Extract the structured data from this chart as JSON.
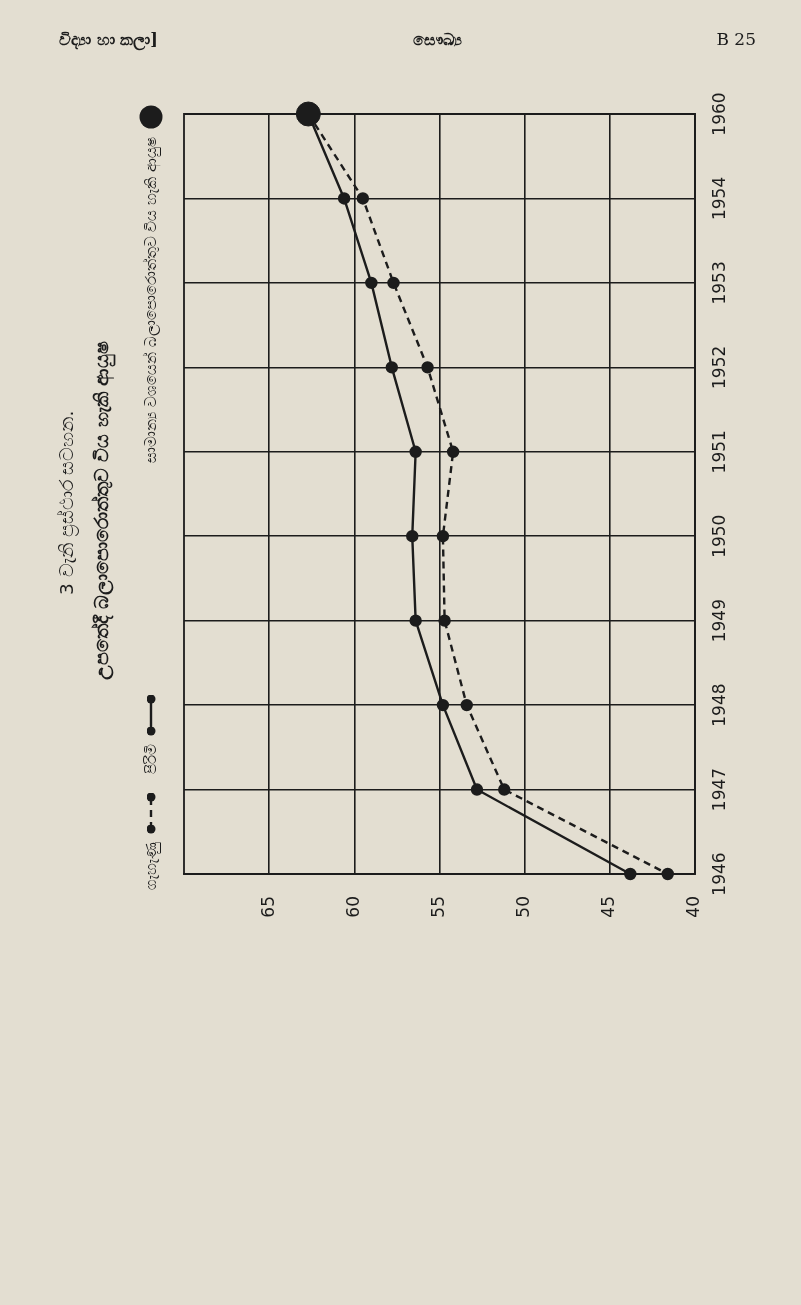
{
  "chart_data": {
    "type": "line",
    "title": "3 වැනි ප්‍රස්ථාර සටහන.",
    "subtitle": "උපතේදී බලාපොරොත්තුව විය හැකි ආයුෂ",
    "annotations": [
      "විද්‍යා හා කලා]",
      "සෞඛ්‍ය",
      "B 25"
    ],
    "categories": [
      "1960",
      "1954",
      "1953",
      "1952",
      "1951",
      "1950",
      "1949",
      "1948",
      "1947",
      "1946"
    ],
    "orientation": "horizontal",
    "xlim": [
      70,
      40
    ],
    "xticks": [
      65,
      60,
      55,
      50,
      45,
      40
    ],
    "series": [
      {
        "name": "ගැහැණු",
        "color": "#1c1c1c",
        "line_style": "dashed",
        "values": [
          62.7,
          59.5,
          57.7,
          55.7,
          54.2,
          54.8,
          54.7,
          53.4,
          51.2,
          41.6
        ]
      },
      {
        "name": "පිරිමි",
        "color": "#1c1c1c",
        "line_style": "solid",
        "values": [
          62.7,
          60.6,
          59.0,
          57.8,
          56.4,
          56.6,
          56.4,
          54.8,
          52.8,
          43.8
        ]
      },
      {
        "name": "සාමාන්‍ය වශයෙන් බලාපොරොත්තුව විය හැකි ආයුෂ",
        "type": "scatter",
        "color": "#1c1c1c",
        "values": [
          62.7,
          null,
          null,
          null,
          null,
          null,
          null,
          null,
          null,
          null
        ]
      }
    ],
    "grid": true,
    "legend": "left",
    "marker": "circle"
  }
}
